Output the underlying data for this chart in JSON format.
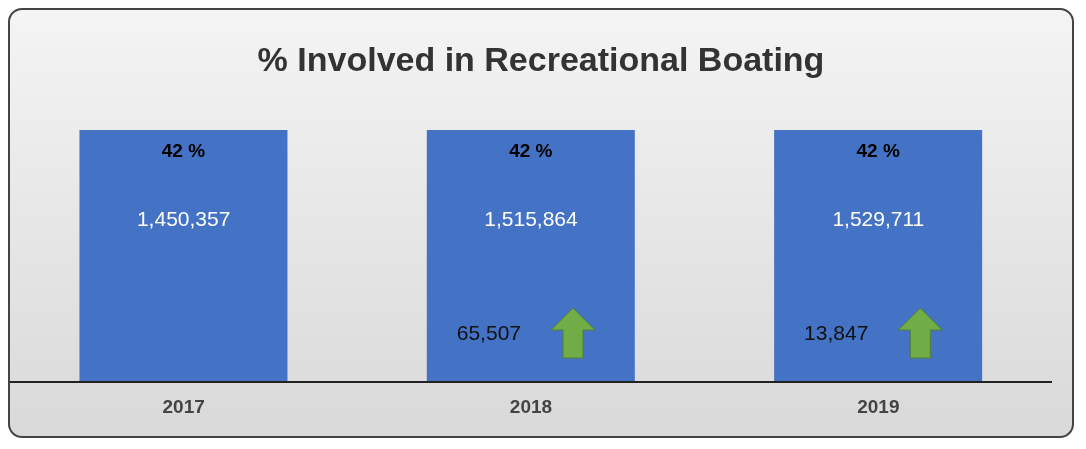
{
  "chart_data": {
    "type": "bar",
    "title": "% Involved in Recreational Boating",
    "categories": [
      "2017",
      "2018",
      "2019"
    ],
    "values": [
      42,
      42,
      42
    ],
    "color": "#4472c4",
    "value_labels": [
      "42 %",
      "42 %",
      "42 %"
    ],
    "ylim": [
      0,
      42
    ],
    "tick_labels": "x",
    "legend": false,
    "annotations": [
      "1,450,357",
      "1,515,864",
      "65,507",
      "1,529,711",
      "13,847"
    ]
  }
}
